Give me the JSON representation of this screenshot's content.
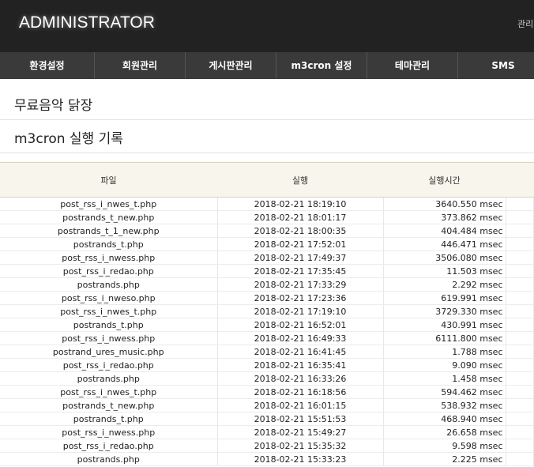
{
  "header": {
    "title": "ADMINISTRATOR",
    "user_link": "관리"
  },
  "nav": {
    "items": [
      "환경설정",
      "회원관리",
      "게시판관리",
      "m3cron 설정",
      "테마관리",
      "SMS"
    ]
  },
  "page": {
    "site_title": "무료음악 닭장",
    "section_title": "m3cron 실행 기록"
  },
  "table": {
    "columns": [
      "파일",
      "실행",
      "실행시간"
    ],
    "rows": [
      [
        "post_rss_i_nwes_t.php",
        "2018-02-21 18:19:10",
        "3640.550 msec"
      ],
      [
        "postrands_t_new.php",
        "2018-02-21 18:01:17",
        "373.862 msec"
      ],
      [
        "postrands_t_1_new.php",
        "2018-02-21 18:00:35",
        "404.484 msec"
      ],
      [
        "postrands_t.php",
        "2018-02-21 17:52:01",
        "446.471 msec"
      ],
      [
        "post_rss_i_nwess.php",
        "2018-02-21 17:49:37",
        "3506.080 msec"
      ],
      [
        "post_rss_i_redao.php",
        "2018-02-21 17:35:45",
        "11.503 msec"
      ],
      [
        "postrands.php",
        "2018-02-21 17:33:29",
        "2.292 msec"
      ],
      [
        "post_rss_i_nweso.php",
        "2018-02-21 17:23:36",
        "619.991 msec"
      ],
      [
        "post_rss_i_nwes_t.php",
        "2018-02-21 17:19:10",
        "3729.330 msec"
      ],
      [
        "postrands_t.php",
        "2018-02-21 16:52:01",
        "430.991 msec"
      ],
      [
        "post_rss_i_nwess.php",
        "2018-02-21 16:49:33",
        "6111.800 msec"
      ],
      [
        "postrand_ures_music.php",
        "2018-02-21 16:41:45",
        "1.788 msec"
      ],
      [
        "post_rss_i_redao.php",
        "2018-02-21 16:35:41",
        "9.090 msec"
      ],
      [
        "postrands.php",
        "2018-02-21 16:33:26",
        "1.458 msec"
      ],
      [
        "post_rss_i_nwes_t.php",
        "2018-02-21 16:18:56",
        "594.462 msec"
      ],
      [
        "postrands_t_new.php",
        "2018-02-21 16:01:15",
        "538.932 msec"
      ],
      [
        "postrands_t.php",
        "2018-02-21 15:51:53",
        "468.940 msec"
      ],
      [
        "post_rss_i_nwess.php",
        "2018-02-21 15:49:27",
        "26.658 msec"
      ],
      [
        "post_rss_i_redao.php",
        "2018-02-21 15:35:32",
        "9.598 msec"
      ],
      [
        "postrands.php",
        "2018-02-21 15:33:23",
        "2.225 msec"
      ]
    ]
  }
}
